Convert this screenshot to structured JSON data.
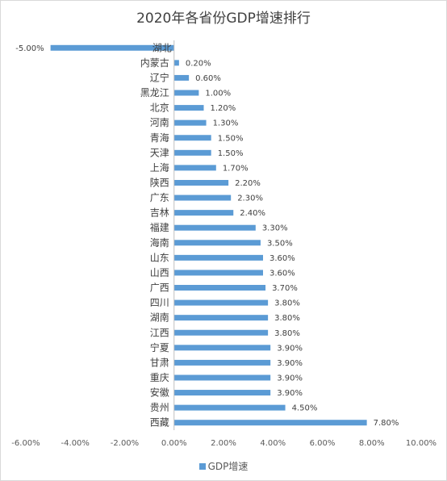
{
  "chart_data": {
    "type": "bar",
    "orientation": "horizontal",
    "title": "2020年各省份GDP增速排行",
    "categories": [
      "湖北",
      "内蒙古",
      "辽宁",
      "黑龙江",
      "北京",
      "河南",
      "青海",
      "天津",
      "上海",
      "陕西",
      "广东",
      "吉林",
      "福建",
      "海南",
      "山东",
      "山西",
      "广西",
      "四川",
      "湖南",
      "江西",
      "宁夏",
      "甘肃",
      "重庆",
      "安徽",
      "贵州",
      "西藏"
    ],
    "series": [
      {
        "name": "GDP增速",
        "values": [
          -5.0,
          0.2,
          0.6,
          1.0,
          1.2,
          1.3,
          1.5,
          1.5,
          1.7,
          2.2,
          2.3,
          2.4,
          3.3,
          3.5,
          3.6,
          3.6,
          3.7,
          3.8,
          3.8,
          3.8,
          3.9,
          3.9,
          3.9,
          3.9,
          4.5,
          7.8
        ],
        "labels": [
          "-5.00%",
          "0.20%",
          "0.60%",
          "1.00%",
          "1.20%",
          "1.30%",
          "1.50%",
          "1.50%",
          "1.70%",
          "2.20%",
          "2.30%",
          "2.40%",
          "3.30%",
          "3.50%",
          "3.60%",
          "3.60%",
          "3.70%",
          "3.80%",
          "3.80%",
          "3.80%",
          "3.90%",
          "3.90%",
          "3.90%",
          "3.90%",
          "4.50%",
          "7.80%"
        ]
      }
    ],
    "xlim": [
      -6,
      10
    ],
    "xticks": [
      -6,
      -4,
      -2,
      0,
      2,
      4,
      6,
      8,
      10
    ],
    "xtick_labels": [
      "-6.00%",
      "-4.00%",
      "-2.00%",
      "0.00%",
      "2.00%",
      "4.00%",
      "6.00%",
      "8.00%",
      "10.00%"
    ],
    "legend_position": "bottom",
    "grid": false,
    "bar_color": "#5b9bd5"
  }
}
